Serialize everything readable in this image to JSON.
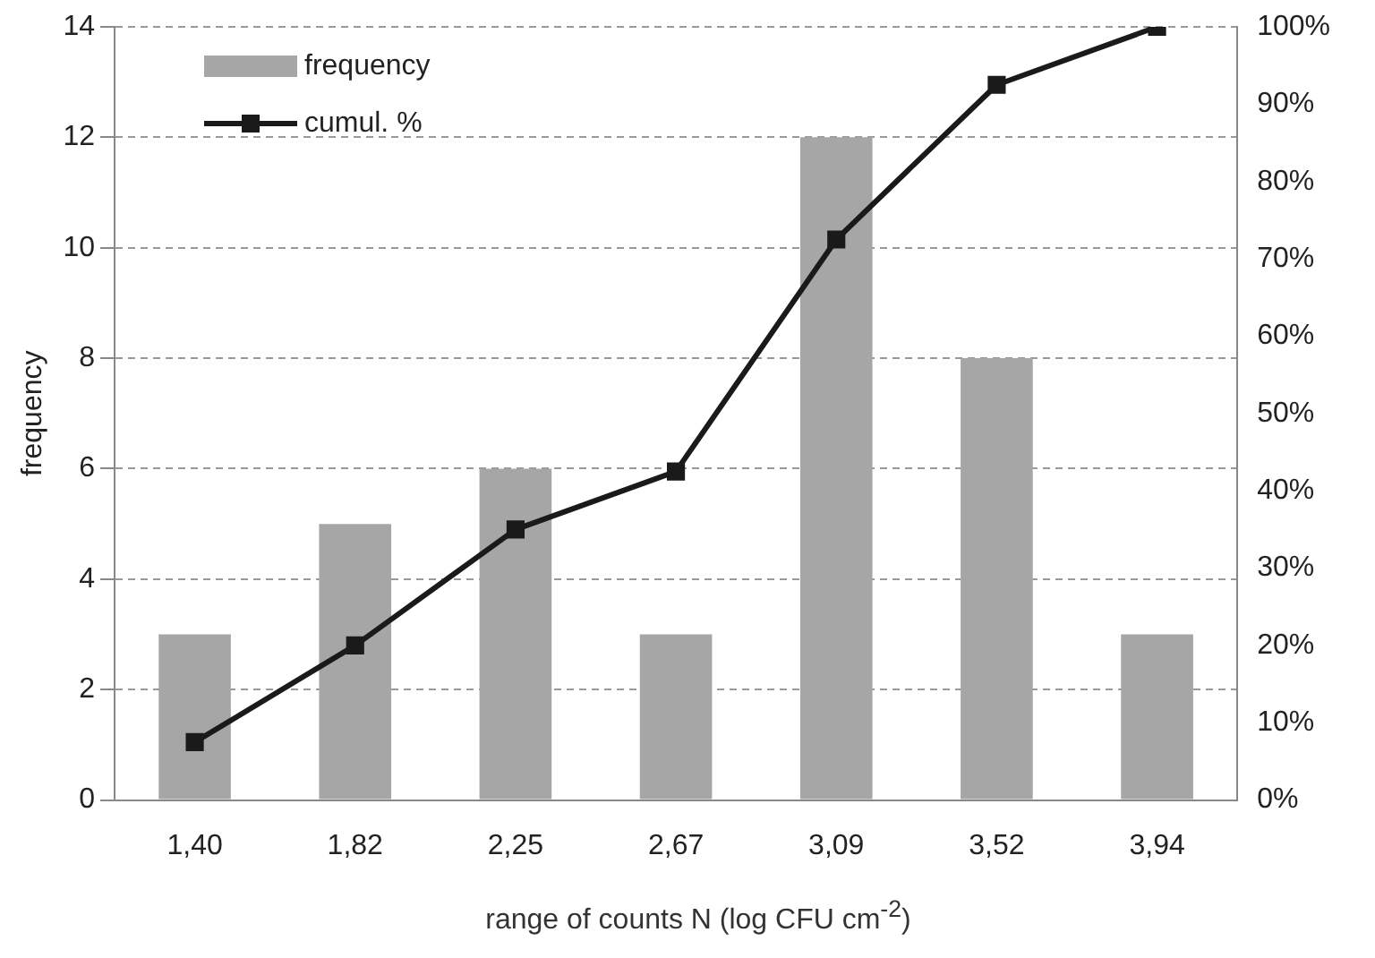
{
  "chart_data": {
    "type": "bar",
    "xlabel": "range of counts N (log CFU cm$^{-2}$)",
    "ylabel": "frequency",
    "categories": [
      "1,40",
      "1,82",
      "2,25",
      "2,67",
      "3,09",
      "3,52",
      "3,94"
    ],
    "series": [
      {
        "name": "frequency",
        "color": "#a6a6a6",
        "values": [
          3,
          5,
          6,
          3,
          12,
          8,
          3
        ]
      },
      {
        "name": "cumul. %",
        "type": "line",
        "axis": "y2",
        "color": "#1a1a1a",
        "values": [
          7.5,
          20,
          35,
          42.5,
          72.5,
          92.5,
          100
        ]
      }
    ],
    "ylim": [
      0,
      14
    ],
    "yticks": [
      0,
      2,
      4,
      6,
      8,
      10,
      12,
      14
    ],
    "y2lim": [
      0,
      100
    ],
    "y2ticks": [
      {
        "value": 0,
        "label": "0%"
      },
      {
        "value": 10,
        "label": "10%"
      },
      {
        "value": 20,
        "label": "20%"
      },
      {
        "value": 30,
        "label": "30%"
      },
      {
        "value": 40,
        "label": "40%"
      },
      {
        "value": 50,
        "label": "50%"
      },
      {
        "value": 60,
        "label": "60%"
      },
      {
        "value": 70,
        "label": "70%"
      },
      {
        "value": 80,
        "label": "80%"
      },
      {
        "value": 90,
        "label": "90%"
      },
      {
        "value": 100,
        "label": "100%"
      }
    ],
    "grid": "y",
    "legend": "top left",
    "marker": "square",
    "line_style": "solid"
  }
}
